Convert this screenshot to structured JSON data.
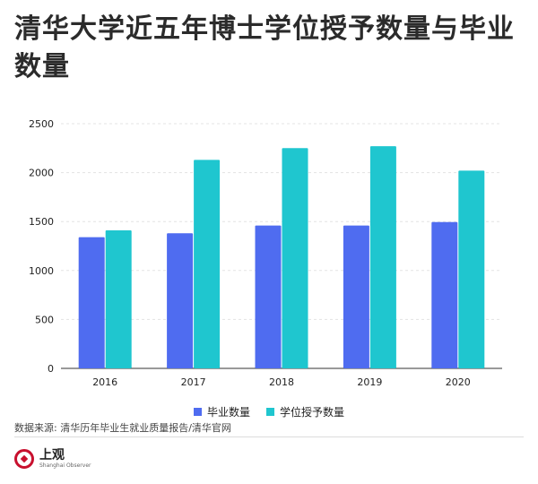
{
  "title": "清华大学近五年博士学位授予数量与毕业数量",
  "source": "数据来源: 清华历年毕业生就业质量报告/清华官网",
  "brand": {
    "name": "上观",
    "tagline": "Shanghai Observer"
  },
  "colors": {
    "series1": "#4f6cf0",
    "series2": "#1fc6cf",
    "grid": "#e3e3e3",
    "axis": "#333333"
  },
  "chart_data": {
    "type": "bar",
    "title": "清华大学近五年博士学位授予数量与毕业数量",
    "categories": [
      "2016",
      "2017",
      "2018",
      "2019",
      "2020"
    ],
    "series": [
      {
        "name": "毕业数量",
        "values": [
          1340,
          1380,
          1460,
          1460,
          1495
        ]
      },
      {
        "name": "学位授予数量",
        "values": [
          1410,
          2130,
          2250,
          2270,
          2020
        ]
      }
    ],
    "ylim": [
      0,
      2500
    ],
    "yticks": [
      0,
      500,
      1000,
      1500,
      2000,
      2500
    ],
    "grid": true,
    "legend": "bottom"
  }
}
